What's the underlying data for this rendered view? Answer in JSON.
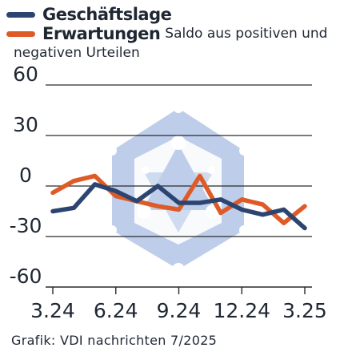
{
  "chart_data": {
    "type": "line",
    "title": "",
    "xlabel": "",
    "ylabel": "",
    "ylim": [
      -60,
      60
    ],
    "yticks": [
      60,
      30,
      0,
      -30,
      -60
    ],
    "xticks": [
      "3.24",
      "6.24",
      "9.24",
      "12.24",
      "3.25"
    ],
    "x": [
      "3.24",
      "4.24",
      "5.24",
      "6.24",
      "7.24",
      "8.24",
      "9.24",
      "10.24",
      "11.24",
      "12.24",
      "1.25",
      "2.25",
      "3.25"
    ],
    "grid": "horizontal",
    "legend_position": "top-left",
    "legend_note": "Saldo aus positiven und negativen Urteilen",
    "series": [
      {
        "name": "Geschäftslage",
        "color": "#2c4470",
        "values": [
          -15,
          -13,
          1,
          -3,
          -9,
          0,
          -10,
          -10,
          -8,
          -14,
          -17,
          -14,
          -25
        ]
      },
      {
        "name": "Erwartungen",
        "color": "#de5a27",
        "values": [
          -4,
          3,
          6,
          -6,
          -9,
          -12,
          -14,
          6,
          -16,
          -8,
          -11,
          -22,
          -12
        ]
      }
    ]
  },
  "credit": "Grafik: VDI nachrichten 7/2025"
}
